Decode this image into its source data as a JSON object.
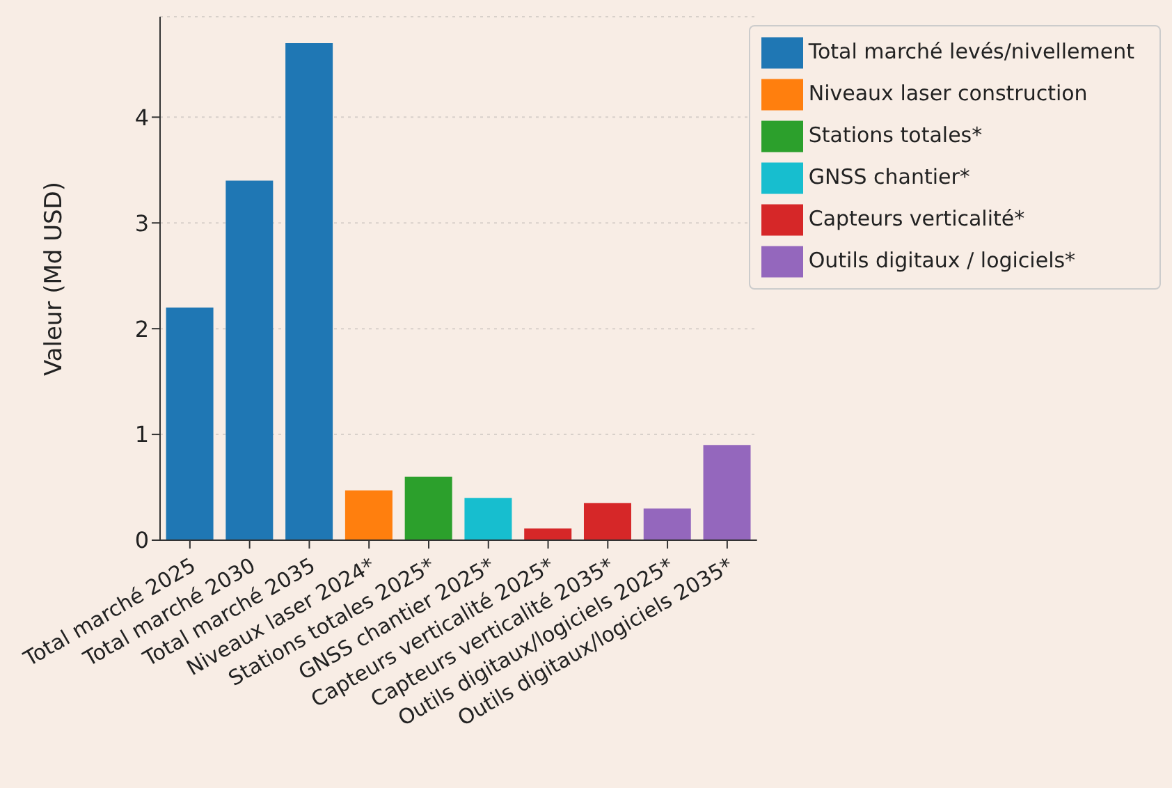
{
  "chart_data": {
    "type": "bar",
    "ylabel": "Valeur (Md USD)",
    "categories": [
      "Total marché 2025",
      "Total marché 2030",
      "Total marché 2035",
      "Niveaux laser 2024*",
      "Stations totales 2025*",
      "GNSS chantier 2025*",
      "Capteurs verticalité 2025*",
      "Capteurs verticalité 2035*",
      "Outils digitaux/logiciels 2025*",
      "Outils digitaux/logiciels 2035*"
    ],
    "series": [
      {
        "name": "Total marché levés/nivellement",
        "color": "#1f77b4",
        "values": [
          2.2,
          3.4,
          4.7,
          null,
          null,
          null,
          null,
          null,
          null,
          null
        ]
      },
      {
        "name": "Niveaux laser construction",
        "color": "#ff7f0e",
        "values": [
          null,
          null,
          null,
          0.47,
          null,
          null,
          null,
          null,
          null,
          null
        ]
      },
      {
        "name": "Stations totales*",
        "color": "#2ca02c",
        "values": [
          null,
          null,
          null,
          null,
          0.6,
          null,
          null,
          null,
          null,
          null
        ]
      },
      {
        "name": "GNSS chantier*",
        "color": "#17becf",
        "values": [
          null,
          null,
          null,
          null,
          null,
          0.4,
          null,
          null,
          null,
          null
        ]
      },
      {
        "name": "Capteurs verticalité*",
        "color": "#d62728",
        "values": [
          null,
          null,
          null,
          null,
          null,
          null,
          0.11,
          0.35,
          null,
          null
        ]
      },
      {
        "name": "Outils digitaux / logiciels*",
        "color": "#9467bd",
        "values": [
          null,
          null,
          null,
          null,
          null,
          null,
          null,
          null,
          0.3,
          0.9
        ]
      }
    ],
    "stacked": true,
    "ylim": [
      0,
      4.95
    ],
    "yticks": [
      0,
      1,
      2,
      3,
      4
    ],
    "grid": "y",
    "legend": "top right"
  }
}
